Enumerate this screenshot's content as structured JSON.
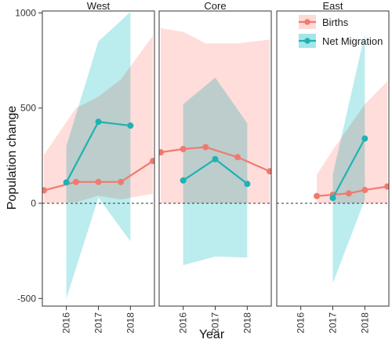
{
  "chart_data": {
    "type": "line",
    "xlabel": "Year",
    "ylabel": "Population change",
    "ylim": [
      -540,
      1010
    ],
    "xlim": [
      2015.25,
      2018.75
    ],
    "yticks": [
      -500,
      0,
      500,
      1000
    ],
    "xticks": [
      2016,
      2017,
      2018
    ],
    "reference_line": 0,
    "panels": [
      "West",
      "Core",
      "East"
    ],
    "series": [
      {
        "name": "Births",
        "color": "#F07A70",
        "ribbon_color": "#FFD9D6",
        "data": {
          "West": {
            "x": [
              2015.3,
              2016.3,
              2017.0,
              2017.7,
              2018.7
            ],
            "y": [
              68,
              112,
              112,
              112,
              222
            ],
            "lower": [
              0,
              5,
              40,
              20,
              50
            ],
            "upper": [
              255,
              500,
              560,
              650,
              880
            ]
          },
          "Core": {
            "x": [
              2015.3,
              2016.0,
              2016.7,
              2017.7,
              2018.7
            ],
            "y": [
              268,
              285,
              295,
              242,
              168
            ],
            "lower": [
              0,
              0,
              0,
              0,
              0
            ],
            "upper": [
              920,
              900,
              840,
              840,
              860
            ]
          },
          "East": {
            "x": [
              2016.5,
              2017.0,
              2017.5,
              2018.0,
              2018.7
            ],
            "y": [
              38,
              45,
              52,
              70,
              88
            ],
            "lower": [
              0,
              0,
              0,
              0,
              0
            ],
            "upper": [
              150,
              280,
              400,
              520,
              640
            ]
          }
        }
      },
      {
        "name": "Net Migration",
        "color": "#1FB2B2",
        "ribbon_color": "#A4E6E8",
        "data": {
          "West": {
            "x": [
              2016.0,
              2017.0,
              2018.0
            ],
            "y": [
              110,
              428,
              408
            ],
            "lower": [
              -500,
              30,
              -200
            ],
            "upper": [
              300,
              850,
              1005
            ]
          },
          "Core": {
            "x": [
              2016.0,
              2017.0,
              2018.0
            ],
            "y": [
              120,
              232,
              102
            ],
            "lower": [
              -325,
              -280,
              -285
            ],
            "upper": [
              520,
              660,
              420
            ]
          },
          "East": {
            "x": [
              2017.0,
              2018.0
            ],
            "y": [
              28,
              340
            ],
            "lower": [
              -420,
              20
            ],
            "upper": [
              150,
              890
            ]
          }
        }
      }
    ],
    "legend": {
      "position": "top-right"
    }
  }
}
